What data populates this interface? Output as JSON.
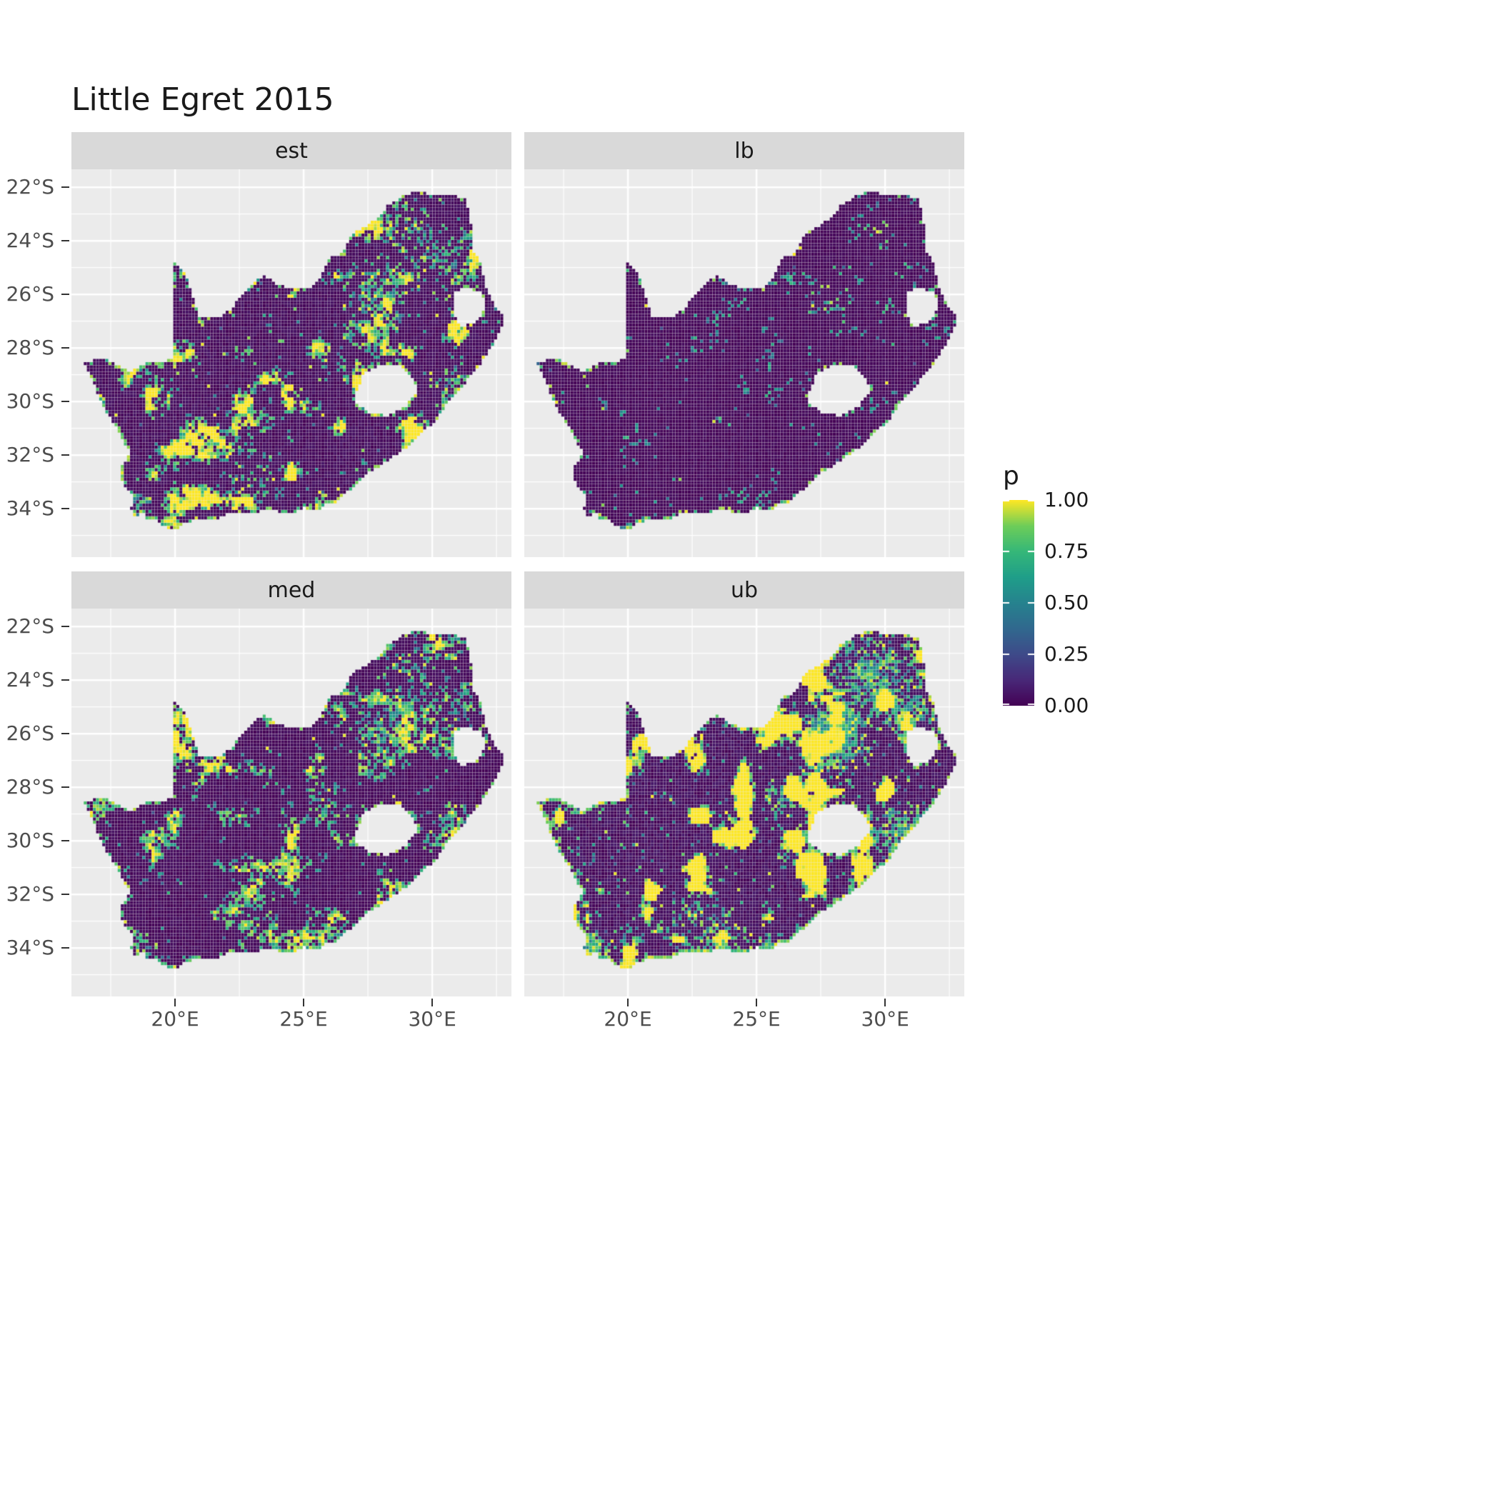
{
  "title": "Little Egret 2015",
  "chart_data": {
    "type": "heatmap",
    "title": "Little Egret 2015",
    "description": "Faceted raster maps of South Africa showing occupancy probability p (viridis scale) for Little Egret in 2015; facets are estimate, lower bound, median and upper bound.",
    "facets": [
      {
        "label": "est",
        "seed": 101,
        "floor": 0.06,
        "hot": 0.75,
        "cluster": 0.55,
        "fine": 0.6,
        "speckle": 0.015,
        "coast": 0.5
      },
      {
        "label": "lb",
        "seed": 202,
        "floor": 0.04,
        "hot": 0.18,
        "cluster": 0.1,
        "fine": 0.15,
        "speckle": 0.004,
        "coast": 0.33
      },
      {
        "label": "med",
        "seed": 303,
        "floor": 0.05,
        "hot": 0.6,
        "cluster": 0.4,
        "fine": 0.45,
        "speckle": 0.01,
        "coast": 0.42
      },
      {
        "label": "ub",
        "seed": 404,
        "floor": 0.08,
        "hot": 1.6,
        "cluster": 1.1,
        "fine": 0.8,
        "speckle": 0.05,
        "coast": 0.85
      }
    ],
    "x": {
      "range": [
        15.97,
        33.08
      ],
      "ticks": [
        {
          "v": 20,
          "label": "20°E"
        },
        {
          "v": 25,
          "label": "25°E"
        },
        {
          "v": 30,
          "label": "30°E"
        }
      ],
      "minor": [
        17.5,
        22.5,
        27.5,
        32.5
      ]
    },
    "y": {
      "range": [
        -35.81,
        -21.33
      ],
      "ticks": [
        {
          "v": -22,
          "label": "22°S"
        },
        {
          "v": -24,
          "label": "24°S"
        },
        {
          "v": -26,
          "label": "26°S"
        },
        {
          "v": -28,
          "label": "28°S"
        },
        {
          "v": -30,
          "label": "30°S"
        },
        {
          "v": -32,
          "label": "32°S"
        },
        {
          "v": -34,
          "label": "34°S"
        }
      ],
      "minor": [
        -23,
        -25,
        -27,
        -29,
        -31,
        -33,
        -35
      ]
    },
    "legend": {
      "title": "p",
      "ticks": [
        {
          "v": 1.0,
          "label": "1.00"
        },
        {
          "v": 0.75,
          "label": "0.75"
        },
        {
          "v": 0.5,
          "label": "0.50"
        },
        {
          "v": 0.25,
          "label": "0.25"
        },
        {
          "v": 0.0,
          "label": "0.00"
        }
      ]
    },
    "palette": [
      "#440154",
      "#482878",
      "#3e4a89",
      "#31688e",
      "#26828e",
      "#1f9e89",
      "#35b779",
      "#6dcd59",
      "#fde725"
    ],
    "panel_bg": "#ebebeb",
    "strip_bg": "#d9d9d9",
    "grid_color": "#ffffff",
    "outline": [
      [
        16.45,
        -28.58
      ],
      [
        17.1,
        -28.35
      ],
      [
        17.65,
        -28.6
      ],
      [
        18.2,
        -28.9
      ],
      [
        19.0,
        -28.55
      ],
      [
        19.6,
        -28.5
      ],
      [
        19.98,
        -28.3
      ],
      [
        19.98,
        -24.77
      ],
      [
        20.4,
        -25.2
      ],
      [
        20.65,
        -25.9
      ],
      [
        20.85,
        -26.6
      ],
      [
        20.9,
        -26.85
      ],
      [
        21.7,
        -26.85
      ],
      [
        22.1,
        -26.6
      ],
      [
        22.65,
        -26.05
      ],
      [
        23.05,
        -25.6
      ],
      [
        23.45,
        -25.3
      ],
      [
        24.0,
        -25.65
      ],
      [
        24.75,
        -25.8
      ],
      [
        25.45,
        -25.7
      ],
      [
        25.85,
        -24.95
      ],
      [
        25.95,
        -24.7
      ],
      [
        26.5,
        -24.45
      ],
      [
        26.85,
        -23.85
      ],
      [
        27.15,
        -23.6
      ],
      [
        27.95,
        -23.15
      ],
      [
        28.3,
        -22.65
      ],
      [
        29.05,
        -22.25
      ],
      [
        29.45,
        -22.15
      ],
      [
        30.0,
        -22.3
      ],
      [
        30.55,
        -22.3
      ],
      [
        31.3,
        -22.4
      ],
      [
        31.55,
        -23.5
      ],
      [
        31.55,
        -24.35
      ],
      [
        31.9,
        -24.8
      ],
      [
        32.0,
        -25.3
      ],
      [
        32.05,
        -25.65
      ],
      [
        32.35,
        -26.3
      ],
      [
        32.85,
        -26.85
      ],
      [
        32.55,
        -27.55
      ],
      [
        32.1,
        -28.3
      ],
      [
        31.65,
        -28.9
      ],
      [
        31.05,
        -29.55
      ],
      [
        30.65,
        -30.0
      ],
      [
        30.2,
        -30.65
      ],
      [
        29.7,
        -31.1
      ],
      [
        29.15,
        -31.6
      ],
      [
        28.6,
        -32.0
      ],
      [
        28.0,
        -32.4
      ],
      [
        27.4,
        -32.75
      ],
      [
        26.8,
        -33.3
      ],
      [
        26.3,
        -33.75
      ],
      [
        25.85,
        -33.8
      ],
      [
        25.65,
        -34.05
      ],
      [
        25.0,
        -33.98
      ],
      [
        24.55,
        -34.2
      ],
      [
        23.95,
        -34.1
      ],
      [
        23.35,
        -34.1
      ],
      [
        22.8,
        -34.2
      ],
      [
        22.2,
        -34.1
      ],
      [
        21.7,
        -34.4
      ],
      [
        21.0,
        -34.4
      ],
      [
        20.45,
        -34.5
      ],
      [
        20.0,
        -34.82
      ],
      [
        19.55,
        -34.65
      ],
      [
        19.25,
        -34.45
      ],
      [
        18.85,
        -34.4
      ],
      [
        18.75,
        -34.1
      ],
      [
        18.45,
        -34.3
      ],
      [
        18.3,
        -34.0
      ],
      [
        18.4,
        -33.6
      ],
      [
        18.0,
        -33.1
      ],
      [
        17.85,
        -32.6
      ],
      [
        18.25,
        -31.9
      ],
      [
        17.6,
        -30.8
      ],
      [
        17.1,
        -30.0
      ],
      [
        16.9,
        -29.4
      ]
    ],
    "holes": [
      [
        [
          27.05,
          -29.65
        ],
        [
          27.35,
          -28.95
        ],
        [
          27.95,
          -28.68
        ],
        [
          28.6,
          -28.6
        ],
        [
          29.15,
          -29.0
        ],
        [
          29.45,
          -29.6
        ],
        [
          29.0,
          -30.15
        ],
        [
          28.25,
          -30.55
        ],
        [
          27.5,
          -30.4
        ],
        [
          27.02,
          -30.05
        ]
      ],
      [
        [
          30.82,
          -25.95
        ],
        [
          31.35,
          -25.72
        ],
        [
          31.95,
          -25.98
        ],
        [
          32.08,
          -26.55
        ],
        [
          31.6,
          -27.1
        ],
        [
          31.1,
          -27.2
        ],
        [
          30.82,
          -26.75
        ]
      ]
    ],
    "hotspots": [
      {
        "lon": 28.0,
        "lat": -26.1,
        "r": 1.1,
        "w": 1.0
      },
      {
        "lon": 28.4,
        "lat": -25.5,
        "r": 0.8,
        "w": 0.8
      },
      {
        "lon": 29.5,
        "lat": -23.9,
        "r": 1.3,
        "w": 0.55
      },
      {
        "lon": 31.0,
        "lat": -25.3,
        "r": 1.0,
        "w": 0.5
      },
      {
        "lon": 30.6,
        "lat": -29.6,
        "r": 0.9,
        "w": 0.6
      },
      {
        "lon": 18.6,
        "lat": -33.95,
        "r": 0.55,
        "w": 0.75
      },
      {
        "lon": 25.55,
        "lat": -33.9,
        "r": 0.45,
        "w": 0.5
      },
      {
        "lon": 26.0,
        "lat": -28.45,
        "r": 0.7,
        "w": 0.35
      },
      {
        "lon": 23.0,
        "lat": -33.0,
        "r": 1.5,
        "w": 0.2
      }
    ]
  }
}
